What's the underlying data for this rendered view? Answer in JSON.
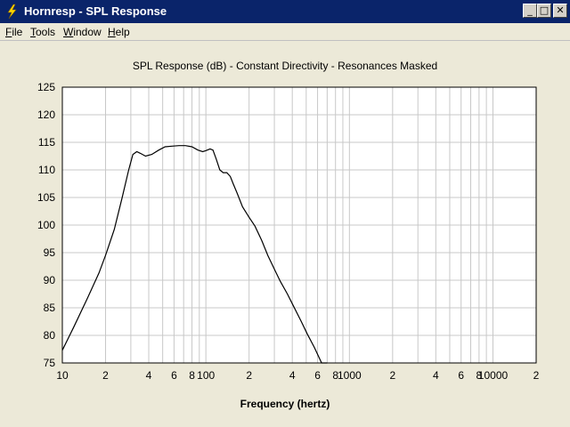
{
  "window": {
    "title": "Hornresp - SPL Response",
    "minimize_glyph": "_",
    "maximize_glyph": "□",
    "close_glyph": "✕"
  },
  "menu": [
    {
      "label": "File",
      "accel": "F",
      "rest": "ile"
    },
    {
      "label": "Tools",
      "accel": "T",
      "rest": "ools"
    },
    {
      "label": "Window",
      "accel": "W",
      "rest": "indow"
    },
    {
      "label": "Help",
      "accel": "H",
      "rest": "elp"
    }
  ],
  "chart_data": {
    "type": "line",
    "title": "SPL Response (dB) - Constant Directivity - Resonances Masked",
    "xlabel": "Frequency (hertz)",
    "ylabel": "",
    "x_scale": "log",
    "xlim": [
      10,
      20000
    ],
    "ylim": [
      75,
      125
    ],
    "grid": true,
    "y_ticks": [
      75,
      80,
      85,
      90,
      95,
      100,
      105,
      110,
      115,
      120,
      125
    ],
    "x_tick_labels": [
      {
        "value": 10,
        "label": "10"
      },
      {
        "value": 20,
        "label": "2"
      },
      {
        "value": 40,
        "label": "4"
      },
      {
        "value": 60,
        "label": "6"
      },
      {
        "value": 80,
        "label": "8"
      },
      {
        "value": 100,
        "label": "100"
      },
      {
        "value": 200,
        "label": "2"
      },
      {
        "value": 400,
        "label": "4"
      },
      {
        "value": 600,
        "label": "6"
      },
      {
        "value": 800,
        "label": "8"
      },
      {
        "value": 1000,
        "label": "1000"
      },
      {
        "value": 2000,
        "label": "2"
      },
      {
        "value": 4000,
        "label": "4"
      },
      {
        "value": 6000,
        "label": "6"
      },
      {
        "value": 8000,
        "label": "8"
      },
      {
        "value": 10000,
        "label": "10000"
      },
      {
        "value": 20000,
        "label": "2"
      }
    ],
    "series": [
      {
        "color": "#000000",
        "x": [
          10,
          12,
          15,
          18,
          20,
          23,
          26,
          29,
          31,
          33,
          35,
          38,
          42,
          47,
          52,
          58,
          65,
          72,
          80,
          88,
          95,
          100,
          107,
          112,
          118,
          125,
          132,
          140,
          148,
          155,
          165,
          180,
          200,
          220,
          245,
          270,
          300,
          330,
          370,
          410,
          460,
          510,
          570,
          640,
          700
        ],
        "y": [
          77.3,
          81.5,
          86.8,
          91.3,
          94.5,
          99.2,
          104.8,
          110.0,
          112.8,
          113.3,
          113.0,
          112.5,
          112.8,
          113.6,
          114.2,
          114.3,
          114.4,
          114.4,
          114.2,
          113.6,
          113.3,
          113.5,
          113.8,
          113.6,
          112.0,
          110.0,
          109.5,
          109.5,
          108.8,
          107.5,
          105.8,
          103.3,
          101.4,
          99.8,
          97.2,
          94.5,
          92.0,
          89.8,
          87.5,
          85.2,
          82.6,
          80.2,
          77.8,
          75.0,
          75.0
        ]
      }
    ]
  }
}
